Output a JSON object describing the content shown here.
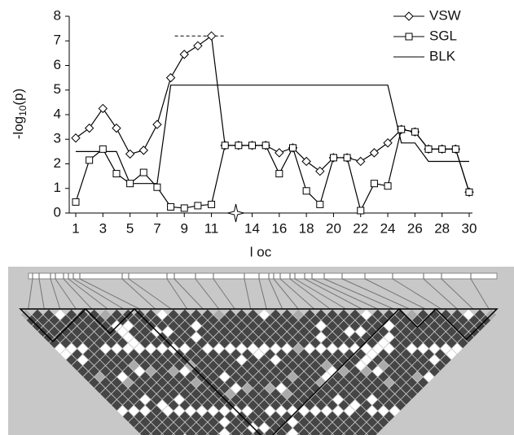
{
  "chart_data": {
    "type": "line",
    "ylabel": [
      "-log",
      "10",
      "(p)"
    ],
    "xlabel": "l oc",
    "x": [
      1,
      2,
      3,
      4,
      5,
      6,
      7,
      8,
      9,
      10,
      11,
      12,
      13,
      14,
      15,
      16,
      17,
      18,
      19,
      20,
      21,
      22,
      23,
      24,
      25,
      26,
      27,
      28,
      29,
      30
    ],
    "xlim": [
      1,
      30
    ],
    "xticks": [
      1,
      3,
      5,
      7,
      9,
      11,
      14,
      16,
      18,
      20,
      22,
      24,
      26,
      28,
      30
    ],
    "ylim": [
      0,
      8
    ],
    "yticks": [
      0,
      1,
      2,
      3,
      4,
      5,
      6,
      7,
      8
    ],
    "legend": "top-right",
    "series": [
      {
        "name": "VSW",
        "color": "#000000",
        "marker": "diamond",
        "values": [
          3.05,
          3.45,
          4.25,
          3.45,
          2.4,
          2.55,
          3.6,
          5.5,
          6.45,
          6.8,
          7.2,
          2.75,
          2.75,
          2.75,
          2.75,
          2.45,
          2.65,
          2.1,
          1.7,
          2.25,
          2.25,
          2.1,
          2.45,
          2.85,
          3.4,
          3.3,
          2.6,
          2.6,
          2.6,
          0.85
        ]
      },
      {
        "name": "SGL",
        "color": "#000000",
        "marker": "square",
        "values": [
          0.45,
          2.15,
          2.6,
          1.6,
          1.2,
          1.65,
          1.05,
          0.25,
          0.2,
          0.3,
          0.35,
          2.75,
          2.75,
          2.75,
          2.75,
          1.6,
          2.65,
          0.9,
          0.35,
          2.25,
          2.25,
          0.1,
          1.2,
          1.1,
          3.4,
          3.3,
          2.6,
          2.6,
          2.6,
          0.85
        ]
      },
      {
        "name": "BLK",
        "color": "#000000",
        "marker": "none",
        "values": [
          2.5,
          2.5,
          2.5,
          2.5,
          1.2,
          1.2,
          1.2,
          5.2,
          5.2,
          5.2,
          5.2,
          5.2,
          5.2,
          5.2,
          5.2,
          5.2,
          5.2,
          5.2,
          5.2,
          5.2,
          5.2,
          5.2,
          5.2,
          5.2,
          2.85,
          2.85,
          2.1,
          2.1,
          2.1,
          2.1
        ]
      }
    ],
    "reference_line": {
      "y": 7.2,
      "x": [
        8.3,
        12
      ]
    },
    "star_x": 12.8
  }
}
